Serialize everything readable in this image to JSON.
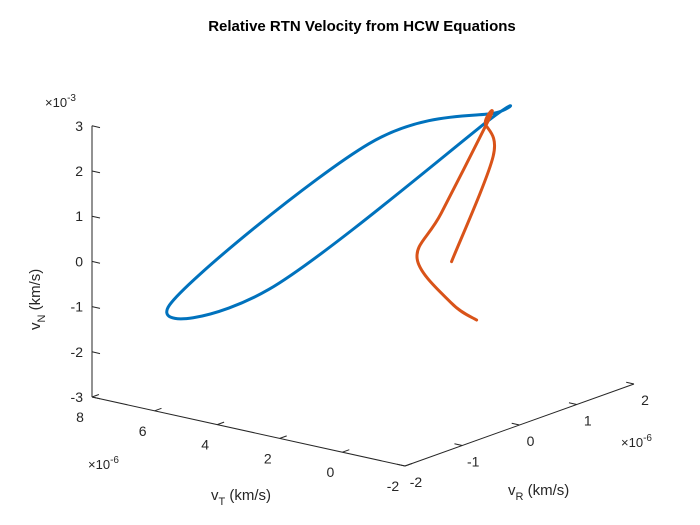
{
  "chart_data": {
    "type": "line",
    "title": "Relative RTN Velocity from HCW Equations",
    "axes": {
      "x": {
        "label": "v_R (km/s)",
        "label_main": "v",
        "label_sub": "R",
        "label_unit": " (km/s)",
        "lim": [
          -2,
          2
        ],
        "ticks": [
          -2,
          -1,
          0,
          1,
          2
        ],
        "tick_labels": [
          "-2",
          "-1",
          "0",
          "1",
          "2"
        ],
        "multiplier": "×10",
        "multiplier_exp": "-6"
      },
      "y": {
        "label": "v_T (km/s)",
        "label_main": "v",
        "label_sub": "T",
        "label_unit": " (km/s)",
        "lim": [
          -2,
          8
        ],
        "ticks": [
          -2,
          0,
          2,
          4,
          6,
          8
        ],
        "tick_labels": [
          "-2",
          "0",
          "2",
          "4",
          "6",
          "8"
        ],
        "multiplier": "×10",
        "multiplier_exp": "-6"
      },
      "z": {
        "label": "v_N (km/s)",
        "label_main": "v",
        "label_sub": "N",
        "label_unit": " (km/s)",
        "lim": [
          -3,
          3
        ],
        "ticks": [
          -3,
          -2,
          -1,
          0,
          1,
          2,
          3
        ],
        "tick_labels": [
          "-3",
          "-2",
          "-1",
          "0",
          "1",
          "2",
          "3"
        ],
        "multiplier": "×10",
        "multiplier_exp": "-3"
      }
    },
    "series": [
      {
        "color": "#0072BD",
        "style": "closed ellipse",
        "points": [
          {
            "vR": 0.79,
            "vT": 7.45,
            "vN": -1.8
          },
          {
            "vR": 2.0,
            "vT": 2.75,
            "vN": 2.05
          },
          {
            "vR": 2.0,
            "vT": 2.5,
            "vN": 2.3
          },
          {
            "vR": 1.0,
            "vT": 4.65,
            "vN": 1.75
          },
          {
            "vR": -1.44,
            "vT": 6.55,
            "vN": -1.0
          }
        ]
      },
      {
        "color": "#D95319",
        "style": "teardrop loop",
        "points": [
          {
            "vR": 1.0,
            "vT": 1.2,
            "vN": -1.62
          },
          {
            "vR": 1.0,
            "vT": 2.0,
            "vN": -1.37
          },
          {
            "vR": 1.0,
            "vT": 3.1,
            "vN": -0.55
          },
          {
            "vR": 1.42,
            "vT": 3.1,
            "vN": 0.26
          },
          {
            "vR": 2.0,
            "vT": 2.6,
            "vN": 2.2
          },
          {
            "vR": 2.0,
            "vT": 2.75,
            "vN": 2.05
          },
          {
            "vR": 2.0,
            "vT": 2.5,
            "vN": 1.35
          },
          {
            "vR": 1.0,
            "vT": 2.0,
            "vN": -0.45
          }
        ]
      }
    ],
    "grid": false,
    "legend": null
  }
}
